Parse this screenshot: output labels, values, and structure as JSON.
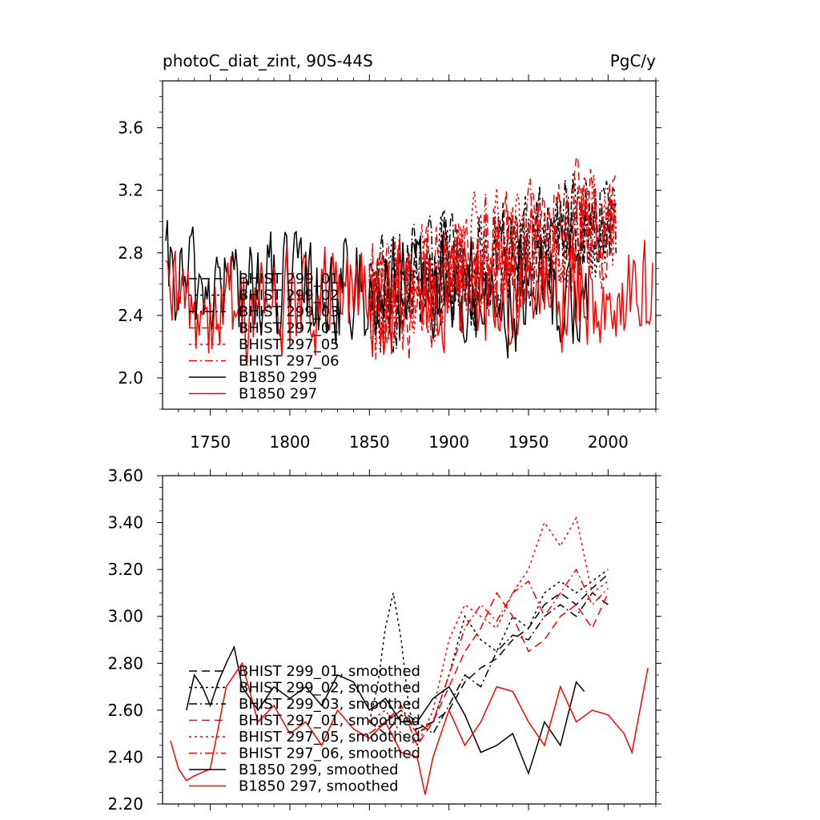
{
  "chart_data": [
    {
      "type": "line",
      "title": "photoC_diat_zint, 90S-44S",
      "units": "PgC/y",
      "xlim": [
        1720,
        2030
      ],
      "ylim": [
        1.8,
        3.9
      ],
      "x_ticks": [
        1750,
        1800,
        1850,
        1900,
        1950,
        2000
      ],
      "x_tick_labels": [
        "1750",
        "1800",
        "1850",
        "1900",
        "1950",
        "2000"
      ],
      "y_ticks": [
        2.0,
        2.4,
        2.8,
        3.2,
        3.6
      ],
      "y_tick_labels": [
        "2.0",
        "2.4",
        "2.8",
        "3.2",
        "3.6"
      ],
      "legend_position": "lower-left",
      "series": [
        {
          "name": "BHIST 299_01",
          "color": "#000000",
          "dash": "dashed",
          "x_start": 1850,
          "x_end": 2005,
          "base_start": 2.5,
          "base_end": 3.0,
          "amplitude": 0.45
        },
        {
          "name": "BHIST 299_02",
          "color": "#000000",
          "dash": "dotted",
          "x_start": 1850,
          "x_end": 2005,
          "base_start": 2.5,
          "base_end": 3.0,
          "amplitude": 0.45
        },
        {
          "name": "BHIST 299_03",
          "color": "#000000",
          "dash": "dashdot",
          "x_start": 1850,
          "x_end": 2005,
          "base_start": 2.5,
          "base_end": 3.0,
          "amplitude": 0.45
        },
        {
          "name": "BHIST 297_01",
          "color": "#ff0000",
          "dash": "dashed",
          "x_start": 1850,
          "x_end": 2005,
          "base_start": 2.45,
          "base_end": 3.05,
          "amplitude": 0.5
        },
        {
          "name": "BHIST 297_05",
          "color": "#ff0000",
          "dash": "dotted",
          "x_start": 1850,
          "x_end": 2005,
          "base_start": 2.45,
          "base_end": 3.05,
          "amplitude": 0.5
        },
        {
          "name": "BHIST 297_06",
          "color": "#ff0000",
          "dash": "dashdot",
          "x_start": 1850,
          "x_end": 2005,
          "base_start": 2.45,
          "base_end": 3.05,
          "amplitude": 0.5
        },
        {
          "name": "B1850 299",
          "color": "#000000",
          "dash": "solid",
          "x_start": 1722,
          "x_end": 1988,
          "base_start": 2.6,
          "base_end": 2.5,
          "amplitude": 0.45
        },
        {
          "name": "B1850 297",
          "color": "#ff0000",
          "dash": "solid",
          "x_start": 1722,
          "x_end": 2028,
          "base_start": 2.45,
          "base_end": 2.55,
          "amplitude": 0.45
        }
      ]
    },
    {
      "type": "line",
      "title": "",
      "xlim": [
        1720,
        2030
      ],
      "ylim": [
        2.2,
        3.6
      ],
      "y_ticks": [
        2.2,
        2.4,
        2.6,
        2.8,
        3.0,
        3.2,
        3.4,
        3.6
      ],
      "y_tick_labels": [
        "2.20",
        "2.40",
        "2.60",
        "2.80",
        "3.00",
        "3.20",
        "3.40",
        "3.60"
      ],
      "legend_position": "lower-left",
      "series": [
        {
          "name": "BHIST 299_01, smoothed",
          "color": "#000000",
          "dash": "dashed",
          "x": [
            1850,
            1860,
            1870,
            1880,
            1890,
            1900,
            1910,
            1920,
            1930,
            1940,
            1950,
            1960,
            1970,
            1980,
            1990,
            2000
          ],
          "y": [
            2.55,
            2.5,
            2.58,
            2.52,
            2.55,
            2.6,
            2.72,
            2.78,
            2.82,
            2.9,
            2.95,
            3.05,
            3.1,
            3.05,
            3.12,
            3.18
          ]
        },
        {
          "name": "BHIST 299_02, smoothed",
          "color": "#000000",
          "dash": "dotted",
          "x": [
            1850,
            1855,
            1860,
            1865,
            1870,
            1875,
            1880,
            1890,
            1900,
            1910,
            1920,
            1930,
            1940,
            1950,
            1960,
            1970,
            1980,
            1990,
            2000
          ],
          "y": [
            2.55,
            2.7,
            2.95,
            3.1,
            2.9,
            2.6,
            2.5,
            2.55,
            2.75,
            3.0,
            2.9,
            2.85,
            3.0,
            2.95,
            3.1,
            3.15,
            3.1,
            3.15,
            3.2
          ]
        },
        {
          "name": "BHIST 299_03, smoothed",
          "color": "#000000",
          "dash": "dashdot",
          "x": [
            1850,
            1860,
            1870,
            1880,
            1890,
            1900,
            1910,
            1920,
            1930,
            1940,
            1950,
            1960,
            1970,
            1980,
            1990,
            2000
          ],
          "y": [
            2.5,
            2.55,
            2.6,
            2.55,
            2.5,
            2.62,
            2.75,
            2.7,
            2.85,
            2.92,
            2.9,
            3.0,
            3.05,
            3.0,
            3.1,
            3.05
          ]
        },
        {
          "name": "BHIST 297_01, smoothed",
          "color": "#ff0000",
          "dash": "dashed",
          "x": [
            1850,
            1860,
            1870,
            1880,
            1890,
            1900,
            1910,
            1920,
            1930,
            1940,
            1950,
            1960,
            1970,
            1980,
            1990,
            2000
          ],
          "y": [
            2.5,
            2.55,
            2.62,
            2.45,
            2.55,
            2.7,
            2.85,
            2.95,
            3.1,
            3.0,
            2.85,
            2.9,
            3.0,
            3.05,
            2.95,
            3.1
          ]
        },
        {
          "name": "BHIST 297_05, smoothed",
          "color": "#ff0000",
          "dash": "dotted",
          "x": [
            1850,
            1860,
            1870,
            1880,
            1890,
            1900,
            1910,
            1920,
            1930,
            1940,
            1950,
            1960,
            1970,
            1980,
            1990,
            2000
          ],
          "y": [
            2.55,
            2.6,
            2.5,
            2.45,
            2.6,
            2.9,
            3.05,
            3.0,
            2.95,
            3.1,
            3.2,
            3.4,
            3.3,
            3.42,
            3.1,
            3.15
          ]
        },
        {
          "name": "BHIST 297_06, smoothed",
          "color": "#ff0000",
          "dash": "dashdot",
          "x": [
            1850,
            1860,
            1870,
            1880,
            1890,
            1900,
            1910,
            1920,
            1930,
            1940,
            1950,
            1960,
            1970,
            1980,
            1990,
            2000
          ],
          "y": [
            2.48,
            2.55,
            2.6,
            2.5,
            2.55,
            2.75,
            2.95,
            3.05,
            2.98,
            3.1,
            3.15,
            3.0,
            3.1,
            3.2,
            3.05,
            3.12
          ]
        },
        {
          "name": "B1850 299, smoothed",
          "color": "#000000",
          "dash": "solid",
          "x": [
            1735,
            1740,
            1745,
            1750,
            1755,
            1760,
            1765,
            1770,
            1780,
            1790,
            1800,
            1810,
            1820,
            1830,
            1840,
            1850,
            1860,
            1870,
            1880,
            1890,
            1900,
            1910,
            1920,
            1930,
            1940,
            1950,
            1960,
            1970,
            1980,
            1985
          ],
          "y": [
            2.6,
            2.75,
            2.7,
            2.62,
            2.72,
            2.8,
            2.87,
            2.7,
            2.6,
            2.7,
            2.65,
            2.7,
            2.62,
            2.75,
            2.72,
            2.6,
            2.65,
            2.55,
            2.55,
            2.65,
            2.7,
            2.58,
            2.42,
            2.45,
            2.5,
            2.33,
            2.55,
            2.45,
            2.72,
            2.68
          ]
        },
        {
          "name": "B1850 297, smoothed",
          "color": "#ff0000",
          "dash": "solid",
          "x": [
            1725,
            1730,
            1735,
            1740,
            1750,
            1760,
            1770,
            1780,
            1790,
            1800,
            1810,
            1820,
            1830,
            1840,
            1850,
            1860,
            1870,
            1880,
            1885,
            1890,
            1900,
            1910,
            1920,
            1930,
            1940,
            1950,
            1960,
            1970,
            1980,
            1990,
            2000,
            2010,
            2015,
            2020,
            2025
          ],
          "y": [
            2.47,
            2.35,
            2.3,
            2.32,
            2.35,
            2.7,
            2.8,
            2.55,
            2.62,
            2.5,
            2.55,
            2.45,
            2.6,
            2.52,
            2.48,
            2.55,
            2.42,
            2.4,
            2.24,
            2.4,
            2.6,
            2.45,
            2.55,
            2.7,
            2.68,
            2.55,
            2.45,
            2.7,
            2.55,
            2.6,
            2.58,
            2.5,
            2.42,
            2.6,
            2.78
          ]
        }
      ]
    }
  ]
}
